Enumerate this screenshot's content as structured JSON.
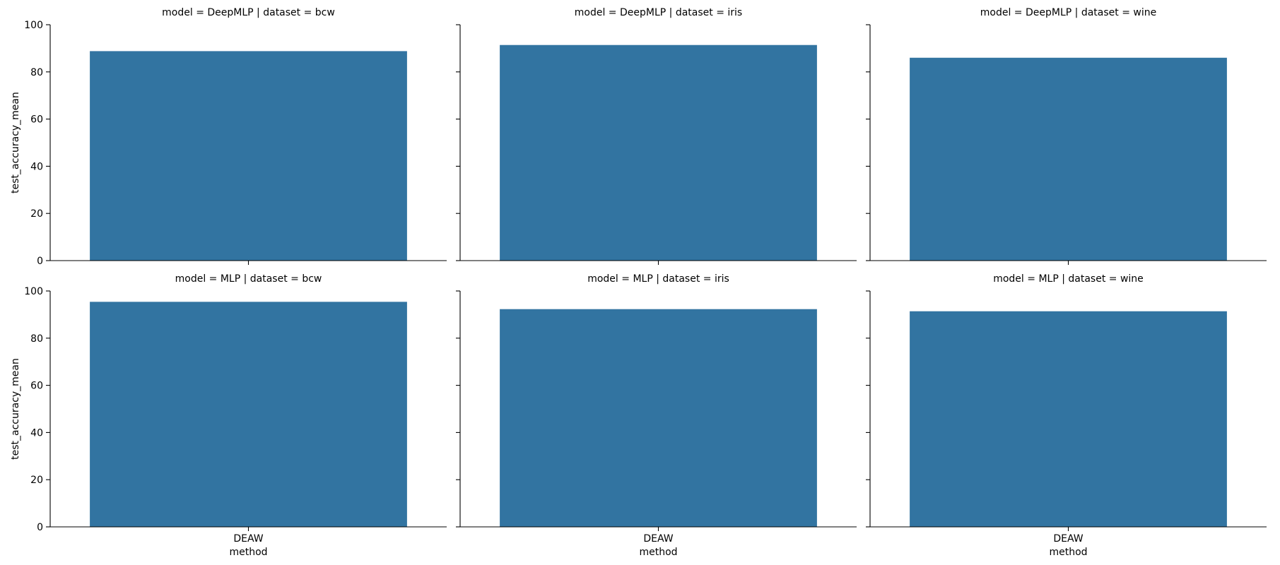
{
  "chart_data": {
    "type": "bar",
    "layout": "facet-grid",
    "rows": 2,
    "cols": 3,
    "bar_color": "#3274a1",
    "ylim": [
      0,
      100
    ],
    "yticks": [
      0,
      20,
      40,
      60,
      80,
      100
    ],
    "ylabel": "test_accuracy_mean",
    "xlabel": "method",
    "categories": [
      "DEAW"
    ],
    "grid": false,
    "panels": [
      {
        "title": "model = DeepMLP | dataset = bcw",
        "model": "DeepMLP",
        "dataset": "bcw",
        "categories": [
          "DEAW"
        ],
        "values": [
          88.8
        ]
      },
      {
        "title": "model = DeepMLP | dataset = iris",
        "model": "DeepMLP",
        "dataset": "iris",
        "categories": [
          "DEAW"
        ],
        "values": [
          91.4
        ]
      },
      {
        "title": "model = DeepMLP | dataset = wine",
        "model": "DeepMLP",
        "dataset": "wine",
        "categories": [
          "DEAW"
        ],
        "values": [
          86.0
        ]
      },
      {
        "title": "model = MLP | dataset = bcw",
        "model": "MLP",
        "dataset": "bcw",
        "categories": [
          "DEAW"
        ],
        "values": [
          95.4
        ]
      },
      {
        "title": "model = MLP | dataset = iris",
        "model": "MLP",
        "dataset": "iris",
        "categories": [
          "DEAW"
        ],
        "values": [
          92.3
        ]
      },
      {
        "title": "model = MLP | dataset = wine",
        "model": "MLP",
        "dataset": "wine",
        "categories": [
          "DEAW"
        ],
        "values": [
          91.4
        ]
      }
    ]
  }
}
